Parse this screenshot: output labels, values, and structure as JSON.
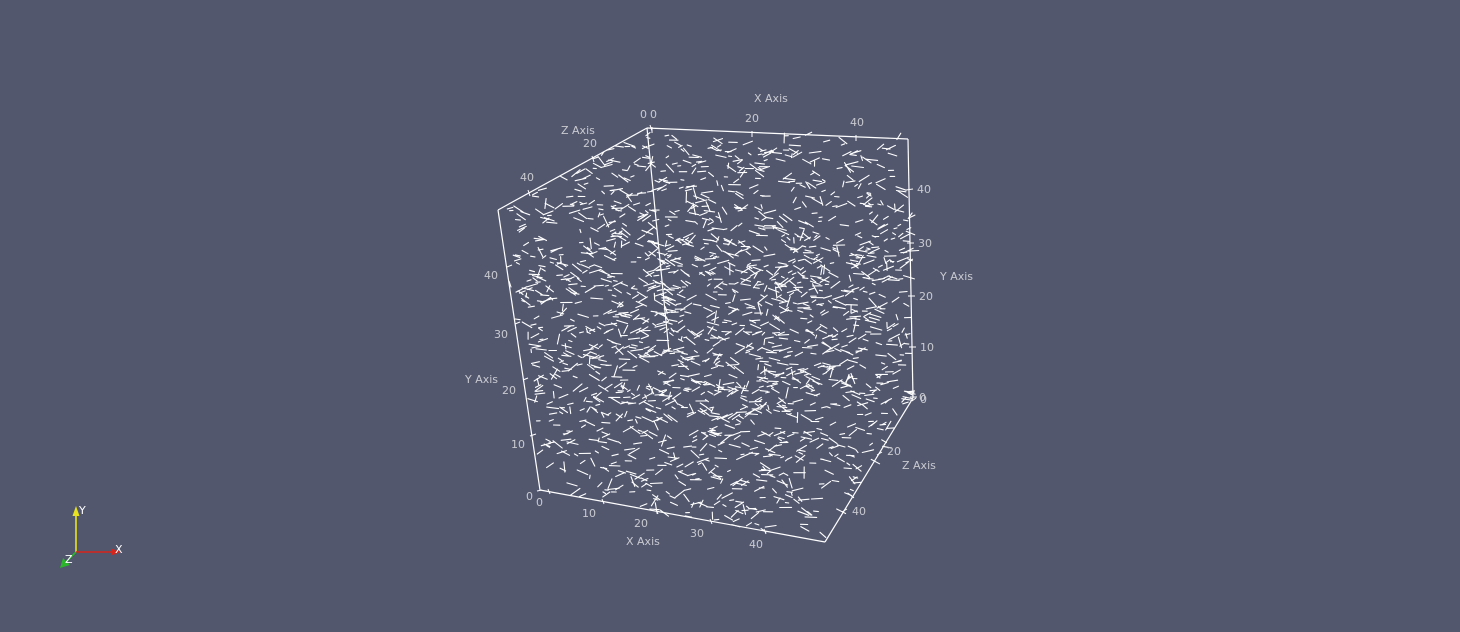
{
  "scene": {
    "background_color": "#52576e",
    "glyph_color": "#ffffff",
    "axis_color": "#ffffff",
    "label_color": "#c9cad0"
  },
  "cube_axes": {
    "x_axis_title": "X Axis",
    "y_axis_title": "Y Axis",
    "z_axis_title": "Z Axis",
    "front_x_ticks": [
      "0",
      "10",
      "20",
      "30",
      "40"
    ],
    "top_x_ticks": [
      "0",
      "20",
      "40"
    ],
    "left_y_ticks": [
      "0",
      "10",
      "20",
      "30",
      "40"
    ],
    "right_y_ticks": [
      "0",
      "10",
      "20",
      "30",
      "40"
    ],
    "top_z_ticks": [
      "0",
      "20",
      "40"
    ],
    "bottom_z_ticks": [
      "0",
      "20",
      "40"
    ]
  },
  "orientation_widget": {
    "x_label": "X",
    "y_label": "Y",
    "z_label": "Z",
    "x_color": "#d8241b",
    "y_color": "#e8e21f",
    "z_color": "#2bb52b"
  }
}
